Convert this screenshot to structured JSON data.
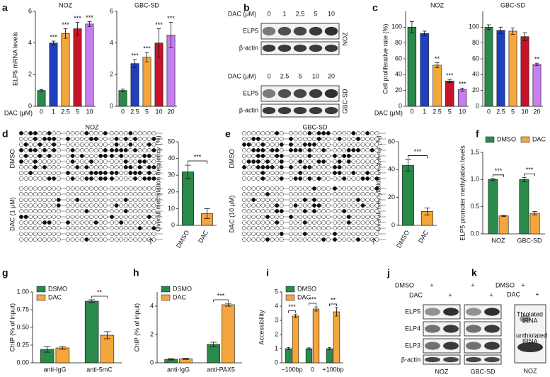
{
  "chart_data": [
    {
      "type": "bar",
      "title": "NOZ",
      "ylabel": "ELP5 mRNA levels",
      "xlabel": "DAC (μM)",
      "categories": [
        "0",
        "1",
        "2.5",
        "5",
        "10"
      ],
      "values": [
        1,
        4.0,
        4.6,
        4.9,
        5.2
      ],
      "errors": [
        0.05,
        0.12,
        0.3,
        0.4,
        0.15
      ],
      "colors": [
        "#2a8a4a",
        "#1f3fbf",
        "#f4a63c",
        "#c8142a",
        "#c67ef0"
      ],
      "ylim": [
        0,
        6
      ],
      "yticks": [
        0,
        2,
        4,
        6
      ],
      "annotations": [
        null,
        "***",
        "***",
        "***",
        "***"
      ]
    },
    {
      "type": "bar",
      "title": "GBC-SD",
      "categories": [
        "0",
        "2.5",
        "5",
        "10",
        "20"
      ],
      "values": [
        1,
        2.7,
        3.1,
        4.0,
        4.5
      ],
      "errors": [
        0.08,
        0.25,
        0.3,
        0.9,
        0.8
      ],
      "colors": [
        "#2a8a4a",
        "#1f3fbf",
        "#f4a63c",
        "#c8142a",
        "#c67ef0"
      ],
      "ylim": [
        0,
        6
      ],
      "yticks": [
        0,
        2,
        4,
        6
      ],
      "annotations": [
        null,
        "***",
        "***",
        "***",
        "***"
      ]
    },
    {
      "type": "bar",
      "title": "NOZ",
      "ylabel": "Cell proliferative rate (%)",
      "xlabel": "DAC (μM)",
      "categories": [
        "0",
        "1",
        "2.5",
        "5",
        "10"
      ],
      "values": [
        100,
        92,
        52,
        32,
        21
      ],
      "errors": [
        7,
        3,
        3,
        2,
        2
      ],
      "colors": [
        "#2a8a4a",
        "#1f3fbf",
        "#f4a63c",
        "#c8142a",
        "#c67ef0"
      ],
      "ylim": [
        0,
        120
      ],
      "yticks": [
        0,
        20,
        40,
        60,
        80,
        100
      ],
      "annotations": [
        null,
        null,
        "**",
        "***",
        "***"
      ]
    },
    {
      "type": "bar",
      "title": "GBC-SD",
      "categories": [
        "0",
        "2.5",
        "5",
        "10",
        "20"
      ],
      "values": [
        100,
        96,
        95,
        88,
        53
      ],
      "errors": [
        3,
        4,
        4,
        5,
        1.5
      ],
      "colors": [
        "#2a8a4a",
        "#1f3fbf",
        "#f4a63c",
        "#c8142a",
        "#c67ef0"
      ],
      "ylim": [
        0,
        120
      ],
      "yticks": [
        0,
        20,
        40,
        60,
        80,
        100
      ],
      "annotations": [
        null,
        null,
        null,
        null,
        "**"
      ]
    },
    {
      "type": "bar",
      "ylabel": "Overall methylation frequency (%)",
      "categories": [
        "DMSO",
        "DAC"
      ],
      "values": [
        32,
        7
      ],
      "errors": [
        4,
        3
      ],
      "colors": [
        "#2a8a4a",
        "#f4a63c"
      ],
      "ylim": [
        0,
        50
      ],
      "yticks": [
        0,
        10,
        20,
        30,
        40,
        50
      ],
      "bracket": "***"
    },
    {
      "type": "bar",
      "ylabel": "Overall methylation frequency (%)",
      "categories": [
        "DMSO",
        "DAC"
      ],
      "values": [
        43,
        10
      ],
      "errors": [
        4,
        2.5
      ],
      "colors": [
        "#2a8a4a",
        "#f4a63c"
      ],
      "ylim": [
        0,
        60
      ],
      "yticks": [
        0,
        20,
        40,
        60
      ],
      "bracket": "***"
    },
    {
      "type": "grouped-bar",
      "ylabel": "ELP5 promoter methylation levels",
      "categories": [
        "NOZ",
        "GBC-SD"
      ],
      "series": [
        {
          "name": "DMSO",
          "color": "#2a8a4a",
          "values": [
            1.0,
            1.0
          ],
          "errors": [
            0.02,
            0.04
          ]
        },
        {
          "name": "DAC",
          "color": "#f4a63c",
          "values": [
            0.33,
            0.38
          ],
          "errors": [
            0.01,
            0.03
          ]
        }
      ],
      "ylim": [
        0,
        1.5
      ],
      "yticks": [
        {
          "value": 0,
          "label": "0.0"
        },
        {
          "value": 0.5,
          "label": "0.5"
        },
        {
          "value": 1,
          "label": "1.0"
        },
        {
          "value": 1.5,
          "label": "1.5"
        }
      ],
      "legend": "top",
      "annotations": [
        "***",
        "***"
      ]
    },
    {
      "type": "grouped-bar",
      "ylabel": "ChIP (% of input)",
      "categories": [
        "anti-IgG",
        "anti-5mC"
      ],
      "series": [
        {
          "name": "DSMO",
          "color": "#2a8a4a",
          "values": [
            0.19,
            0.87
          ],
          "errors": [
            0.04,
            0.02
          ]
        },
        {
          "name": "DAC",
          "color": "#f4a63c",
          "values": [
            0.21,
            0.39
          ],
          "errors": [
            0.02,
            0.05
          ]
        }
      ],
      "ylim": [
        0,
        1.0
      ],
      "yticks": [
        {
          "value": 0,
          "label": "0.00"
        },
        {
          "value": 0.25,
          "label": "0.25"
        },
        {
          "value": 0.5,
          "label": "0.50"
        },
        {
          "value": 0.75,
          "label": "0.75"
        },
        {
          "value": 1,
          "label": "1.00"
        }
      ],
      "legend": "top-left",
      "annotations": [
        null,
        "**"
      ]
    },
    {
      "type": "grouped-bar",
      "ylabel": "ChIP (% of input)",
      "categories": [
        "anti-IgG",
        "anti-PAX5"
      ],
      "series": [
        {
          "name": "DSMO",
          "color": "#2a8a4a",
          "values": [
            0.25,
            1.3
          ],
          "errors": [
            0.05,
            0.15
          ]
        },
        {
          "name": "DAC",
          "color": "#f4a63c",
          "values": [
            0.28,
            4.1
          ],
          "errors": [
            0.04,
            0.1
          ]
        }
      ],
      "ylim": [
        0,
        5
      ],
      "yticks": [
        0,
        2,
        4
      ],
      "legend": "top-left",
      "annotations": [
        null,
        "***"
      ]
    },
    {
      "type": "grouped-bar",
      "ylabel": "Accessibility",
      "categories": [
        "−100bp",
        "0",
        "+100bp"
      ],
      "series": [
        {
          "name": "DMSO",
          "color": "#2a8a4a",
          "values": [
            1,
            1,
            1
          ],
          "errors": [
            0.08,
            0.06,
            0.08
          ]
        },
        {
          "name": "DAC",
          "color": "#f4a63c",
          "values": [
            3.3,
            3.8,
            3.6
          ],
          "errors": [
            0.12,
            0.15,
            0.3
          ]
        }
      ],
      "ylim": [
        0,
        5
      ],
      "yticks": [
        0,
        1,
        2,
        3,
        4,
        5
      ],
      "legend": "top-left",
      "annotations": [
        "***",
        "***",
        "**"
      ]
    }
  ],
  "figure": {
    "letters": [
      "a",
      "b",
      "c",
      "d",
      "e",
      "f",
      "g",
      "h",
      "i",
      "j",
      "k"
    ],
    "b": {
      "axis": "DAC (μM)",
      "top_lanes": [
        "0",
        "1",
        "2.5",
        "5",
        "10"
      ],
      "bottom_lanes": [
        "0",
        "2.5",
        "5",
        "10",
        "20"
      ],
      "rows": [
        "ELP5",
        "β-actin"
      ],
      "top_cell": "NOZ",
      "bottom_cell": "GBC-SD"
    },
    "d": {
      "title": "NOZ",
      "groups": [
        "DMSO",
        "DAC (1 μM)"
      ]
    },
    "e": {
      "title": "GBC-SD",
      "groups": [
        "DMSO",
        "DAC (10 μM)"
      ]
    },
    "j": {
      "conditions": [
        "DMSO",
        "DAC"
      ],
      "plus": "+",
      "rows": [
        "ELP5",
        "ELP4",
        "ELP3",
        "β-actin"
      ],
      "cells": [
        "NOZ",
        "GBC-SD"
      ]
    },
    "k": {
      "conditions": [
        "DMSO",
        "DAC"
      ],
      "plus": "+",
      "thiolated": [
        "Thiolated",
        "tRNA"
      ],
      "unthiolated": [
        "unthiolated",
        "tRNA"
      ],
      "cell": "NOZ"
    }
  }
}
